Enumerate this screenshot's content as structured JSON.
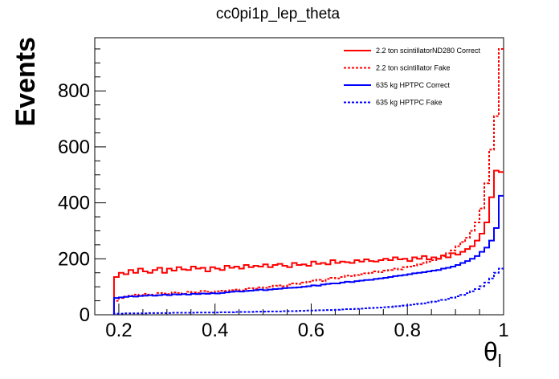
{
  "chart_data": {
    "type": "line",
    "style": "step-histogram",
    "title": "cc0pi1p_lep_theta",
    "xlabel": "θ",
    "xlabel_subscript": "l",
    "ylabel": "Events",
    "xlim": [
      0.15,
      1.0
    ],
    "ylim": [
      0,
      990
    ],
    "x_ticks": [
      "0.2",
      "0.4",
      "0.6",
      "0.8",
      "1"
    ],
    "y_ticks": [
      "0",
      "200",
      "400",
      "600",
      "800"
    ],
    "grid": false,
    "legend_position": "top-right",
    "bin_width": 0.01,
    "x": [
      0.195,
      0.205,
      0.215,
      0.225,
      0.235,
      0.245,
      0.255,
      0.265,
      0.275,
      0.285,
      0.295,
      0.305,
      0.315,
      0.325,
      0.335,
      0.345,
      0.355,
      0.365,
      0.375,
      0.385,
      0.395,
      0.405,
      0.415,
      0.425,
      0.435,
      0.445,
      0.455,
      0.465,
      0.475,
      0.485,
      0.495,
      0.505,
      0.515,
      0.525,
      0.535,
      0.545,
      0.555,
      0.565,
      0.575,
      0.585,
      0.595,
      0.605,
      0.615,
      0.625,
      0.635,
      0.645,
      0.655,
      0.665,
      0.675,
      0.685,
      0.695,
      0.705,
      0.715,
      0.725,
      0.735,
      0.745,
      0.755,
      0.765,
      0.775,
      0.785,
      0.795,
      0.805,
      0.815,
      0.825,
      0.835,
      0.845,
      0.855,
      0.865,
      0.875,
      0.885,
      0.895,
      0.905,
      0.915,
      0.925,
      0.935,
      0.945,
      0.955,
      0.965,
      0.975,
      0.985,
      0.995
    ],
    "series": [
      {
        "name": "2.2 ton scintillatorND280 Correct",
        "color": "#ff0000",
        "dash": "solid",
        "values": [
          135,
          150,
          145,
          160,
          150,
          165,
          155,
          150,
          160,
          168,
          150,
          165,
          158,
          170,
          162,
          160,
          172,
          165,
          168,
          155,
          170,
          165,
          160,
          175,
          168,
          172,
          165,
          178,
          170,
          175,
          172,
          180,
          170,
          178,
          182,
          175,
          170,
          185,
          178,
          180,
          175,
          190,
          182,
          185,
          180,
          195,
          185,
          190,
          188,
          185,
          195,
          190,
          198,
          192,
          190,
          195,
          200,
          195,
          205,
          198,
          200,
          192,
          205,
          200,
          210,
          198,
          205,
          200,
          212,
          205,
          220,
          215,
          225,
          235,
          245,
          265,
          290,
          330,
          420,
          515,
          510
        ]
      },
      {
        "name": "2.2 ton scintillator Fake",
        "color": "#ff0000",
        "dash": "dashed",
        "values": [
          50,
          60,
          65,
          68,
          72,
          70,
          75,
          72,
          70,
          78,
          76,
          74,
          80,
          78,
          75,
          82,
          80,
          78,
          85,
          82,
          80,
          84,
          86,
          85,
          88,
          90,
          87,
          92,
          95,
          93,
          98,
          96,
          100,
          104,
          105,
          102,
          108,
          112,
          110,
          115,
          118,
          122,
          125,
          120,
          128,
          132,
          130,
          135,
          140,
          138,
          142,
          145,
          148,
          150,
          155,
          152,
          158,
          160,
          165,
          162,
          170,
          172,
          175,
          180,
          185,
          190,
          195,
          200,
          210,
          220,
          230,
          245,
          260,
          275,
          300,
          330,
          380,
          470,
          590,
          710,
          950
        ]
      },
      {
        "name": "635 kg HPTPC Correct",
        "color": "#0000ff",
        "dash": "solid",
        "values": [
          60,
          62,
          64,
          66,
          65,
          67,
          68,
          70,
          68,
          70,
          72,
          70,
          73,
          72,
          74,
          72,
          75,
          74,
          76,
          75,
          77,
          76,
          78,
          80,
          82,
          84,
          83,
          85,
          86,
          88,
          90,
          88,
          90,
          92,
          93,
          95,
          96,
          97,
          98,
          100,
          102,
          105,
          104,
          108,
          110,
          112,
          112,
          115,
          118,
          117,
          120,
          122,
          124,
          125,
          128,
          130,
          132,
          135,
          138,
          140,
          142,
          145,
          148,
          150,
          152,
          155,
          158,
          160,
          165,
          168,
          172,
          178,
          185,
          192,
          200,
          210,
          225,
          240,
          265,
          310,
          425
        ]
      },
      {
        "name": "635 kg HPTPC Fake",
        "color": "#0000ff",
        "dash": "dashed",
        "values": [
          4,
          4,
          5,
          5,
          5,
          5,
          5,
          6,
          6,
          6,
          6,
          6,
          7,
          7,
          7,
          7,
          7,
          8,
          8,
          8,
          8,
          8,
          9,
          9,
          9,
          10,
          10,
          10,
          10,
          11,
          11,
          11,
          12,
          12,
          12,
          13,
          13,
          13,
          14,
          14,
          15,
          15,
          16,
          16,
          17,
          17,
          18,
          19,
          20,
          20,
          21,
          22,
          23,
          24,
          25,
          26,
          27,
          28,
          30,
          31,
          33,
          35,
          37,
          39,
          41,
          44,
          47,
          50,
          53,
          57,
          61,
          66,
          71,
          77,
          84,
          92,
          102,
          115,
          130,
          150,
          165
        ]
      }
    ]
  }
}
